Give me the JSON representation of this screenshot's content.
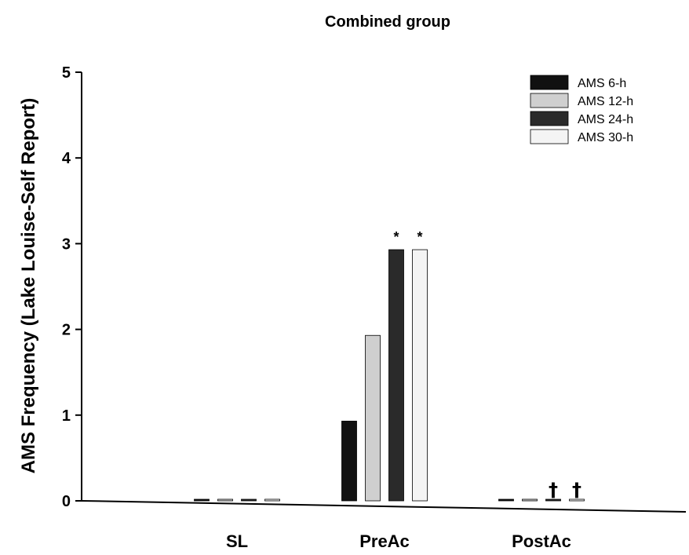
{
  "chart_data": {
    "type": "bar",
    "title": "Combined group",
    "ylabel": "AMS Frequency (Lake Louise-Self Report)",
    "xlabel": "",
    "ylim": [
      0,
      5
    ],
    "yticks": [
      "0",
      "1",
      "2",
      "3",
      "4",
      "5"
    ],
    "categories": [
      "SL",
      "PreAc",
      "PostAc"
    ],
    "series": [
      {
        "name": "AMS 6-h",
        "values": [
          0.0,
          0.93,
          0.0
        ],
        "color": "#111111"
      },
      {
        "name": "AMS 12-h",
        "values": [
          0.0,
          1.93,
          0.0
        ],
        "color": "#cfcfcf"
      },
      {
        "name": "AMS 24-h",
        "values": [
          0.0,
          2.93,
          0.0
        ],
        "color": "#2a2a2a"
      },
      {
        "name": "AMS 30-h",
        "values": [
          0.0,
          2.93,
          0.0
        ],
        "color": "#f4f4f4"
      }
    ],
    "legend_position": "top-right",
    "annotations": [
      {
        "text": "*",
        "category": "PreAc",
        "series": "AMS 24-h"
      },
      {
        "text": "*",
        "category": "PreAc",
        "series": "AMS 30-h"
      },
      {
        "text": "†",
        "category": "PostAc",
        "series": "AMS 24-h"
      },
      {
        "text": "†",
        "category": "PostAc",
        "series": "AMS 30-h"
      }
    ],
    "grid": false
  }
}
